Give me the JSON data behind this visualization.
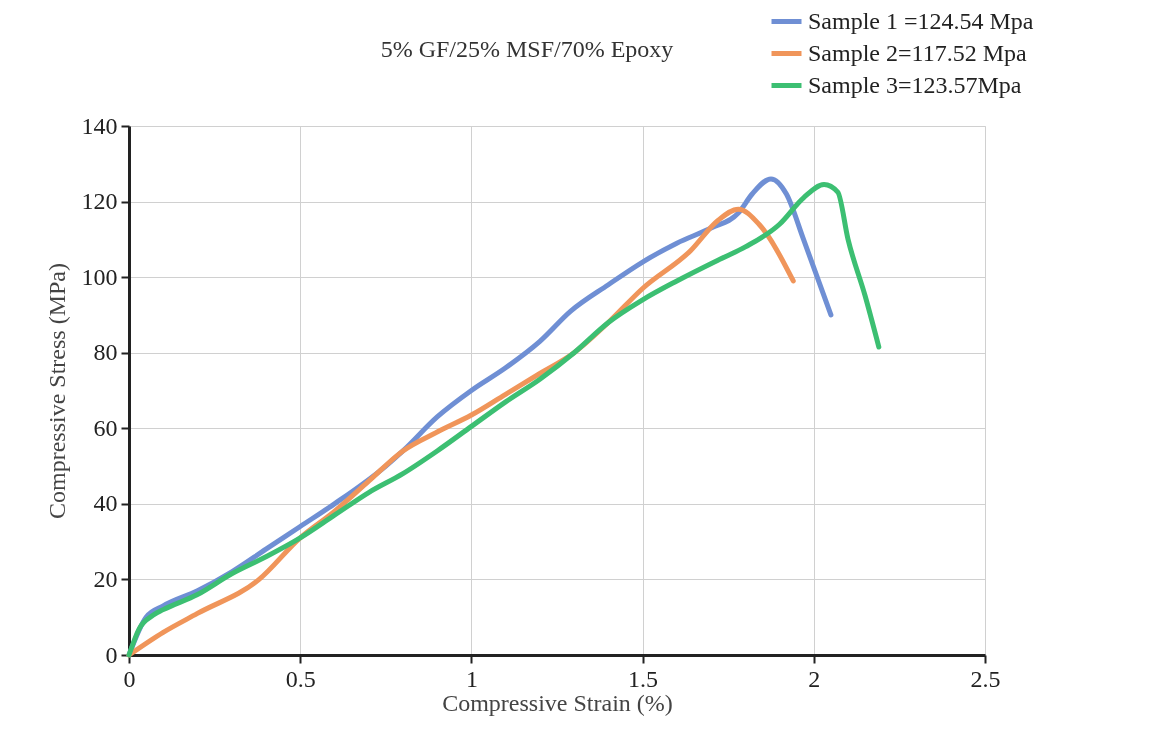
{
  "chart_data": {
    "type": "line",
    "title": "5% GF/25% MSF/70% Epoxy",
    "xlabel": "Compressive Strain (%)",
    "ylabel": "Compressive Stress (MPa)",
    "xlim": [
      0,
      2.5
    ],
    "xticks": [
      0,
      0.5,
      1,
      1.5,
      2,
      2.5
    ],
    "ylim": [
      0,
      140
    ],
    "yticks": [
      0,
      20,
      40,
      60,
      80,
      100,
      120,
      140
    ],
    "grid": true,
    "legend": "top right",
    "line_style": "solid",
    "marker": "none",
    "series": [
      {
        "name": "Sample 1 =124.54 Mpa",
        "color": "#6f8fd4",
        "x": [
          0,
          0.05,
          0.1,
          0.2,
          0.3,
          0.4,
          0.5,
          0.6,
          0.75,
          0.8,
          0.9,
          1.0,
          1.1,
          1.2,
          1.29,
          1.4,
          1.5,
          1.6,
          1.7,
          1.78,
          1.82,
          1.875,
          1.92,
          1.97,
          2.05
        ],
        "values": [
          0,
          10,
          13,
          17,
          22,
          28,
          34,
          40,
          50,
          54,
          63,
          70,
          76,
          83,
          91,
          98,
          104,
          109,
          113,
          117,
          122,
          126,
          122,
          110,
          90
        ]
      },
      {
        "name": "Sample 2=117.52 Mpa",
        "color": "#f0955a",
        "x": [
          0,
          0.1,
          0.2,
          0.38,
          0.5,
          0.6,
          0.7,
          0.8,
          0.9,
          1.0,
          1.1,
          1.2,
          1.3,
          1.4,
          1.5,
          1.64,
          1.72,
          1.78,
          1.84,
          1.94
        ],
        "values": [
          0,
          6,
          11,
          20,
          31,
          38,
          46,
          54,
          59,
          63.5,
          69,
          74.5,
          80,
          88,
          97,
          107,
          115,
          118,
          114,
          99
        ]
      },
      {
        "name": "Sample 3=123.57Mpa",
        "color": "#3cbf72",
        "x": [
          0,
          0.03,
          0.07,
          0.1,
          0.2,
          0.3,
          0.4,
          0.5,
          0.6,
          0.7,
          0.8,
          0.9,
          1.0,
          1.1,
          1.2,
          1.3,
          1.4,
          1.5,
          1.6,
          1.72,
          1.8,
          1.9,
          1.97,
          2.03,
          2.07,
          2.1,
          2.15,
          2.19
        ],
        "values": [
          0,
          7,
          10.5,
          12,
          16,
          21.5,
          26,
          31,
          37,
          43,
          48,
          54,
          60.5,
          67,
          73,
          80,
          88,
          94,
          99,
          104.5,
          108,
          114,
          121,
          124.5,
          122.5,
          110,
          95,
          81.5
        ]
      }
    ]
  }
}
